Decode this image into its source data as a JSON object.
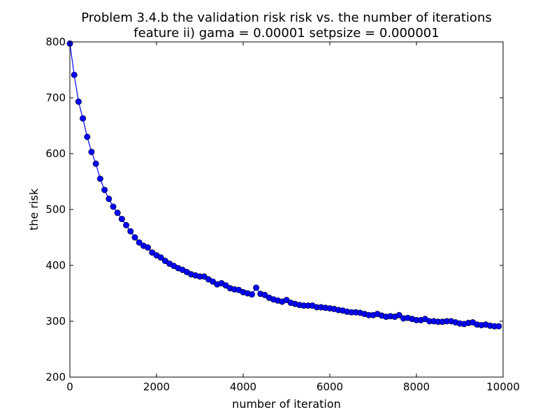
{
  "chart_data": {
    "type": "line",
    "title": "Problem 3.4.b the validation risk risk vs. the number of iterations",
    "subtitle": "feature ii) gama = 0.00001 setpsize = 0.000001",
    "xlabel": "number of iteration",
    "ylabel": "the risk",
    "xlim": [
      0,
      10000
    ],
    "ylim": [
      200,
      800
    ],
    "xticks": [
      "0",
      "2000",
      "4000",
      "6000",
      "8000",
      "10000"
    ],
    "yticks": [
      "200",
      "300",
      "400",
      "500",
      "600",
      "700",
      "800"
    ],
    "grid": false,
    "color": "#0000ff",
    "x": [
      0,
      100,
      200,
      300,
      400,
      500,
      600,
      700,
      800,
      900,
      1000,
      1100,
      1200,
      1300,
      1400,
      1500,
      1600,
      1700,
      1800,
      1900,
      2000,
      2100,
      2200,
      2300,
      2400,
      2500,
      2600,
      2700,
      2800,
      2900,
      3000,
      3100,
      3200,
      3300,
      3400,
      3500,
      3600,
      3700,
      3800,
      3900,
      4000,
      4100,
      4200,
      4300,
      4400,
      4500,
      4600,
      4700,
      4800,
      4900,
      5000,
      5100,
      5200,
      5300,
      5400,
      5500,
      5600,
      5700,
      5800,
      5900,
      6000,
      6100,
      6200,
      6300,
      6400,
      6500,
      6600,
      6700,
      6800,
      6900,
      7000,
      7100,
      7200,
      7300,
      7400,
      7500,
      7600,
      7700,
      7800,
      7900,
      8000,
      8100,
      8200,
      8300,
      8400,
      8500,
      8600,
      8700,
      8800,
      8900,
      9000,
      9100,
      9200,
      9300,
      9400,
      9500,
      9600,
      9700,
      9800,
      9900
    ],
    "values": [
      797,
      741,
      693,
      663,
      630,
      603,
      582,
      555,
      535,
      519,
      505,
      494,
      483,
      472,
      461,
      450,
      441,
      435,
      432,
      423,
      418,
      414,
      408,
      403,
      399,
      395,
      392,
      388,
      384,
      382,
      380,
      380,
      375,
      371,
      366,
      368,
      364,
      359,
      357,
      356,
      352,
      350,
      348,
      360,
      349,
      347,
      342,
      339,
      337,
      335,
      338,
      333,
      331,
      329,
      328,
      328,
      328,
      325,
      325,
      324,
      323,
      322,
      320,
      319,
      317,
      316,
      316,
      315,
      313,
      311,
      311,
      313,
      310,
      308,
      309,
      308,
      311,
      305,
      306,
      304,
      302,
      302,
      304,
      300,
      300,
      299,
      299,
      300,
      300,
      298,
      296,
      295,
      297,
      298,
      294,
      293,
      294,
      292,
      291,
      291
    ]
  }
}
